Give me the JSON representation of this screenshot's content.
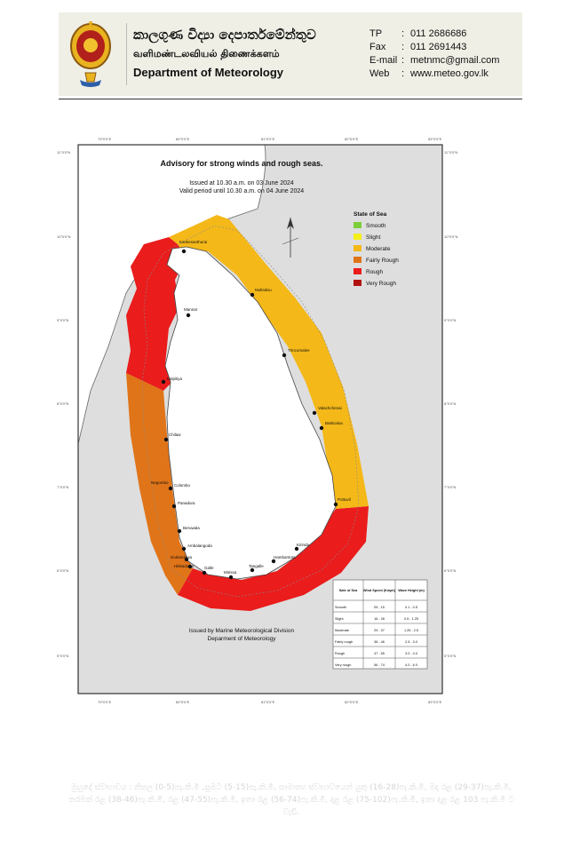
{
  "header": {
    "name_sinhala": "කාලගුණ විද්‍යා දෙපාර්තමේන්තුව",
    "name_tamil": "வளிமண்டலவியல் திணைக்களம்",
    "name_english": "Department of Meteorology",
    "contacts": [
      {
        "key": "TP",
        "sep": ":",
        "value": "011 2686686"
      },
      {
        "key": "Fax",
        "sep": ":",
        "value": "011 2691443"
      },
      {
        "key": "E-mail",
        "sep": ":",
        "value": "metnmc@gmail.com"
      },
      {
        "key": "Web",
        "sep": ":",
        "value": "www.meteo.gov.lk"
      }
    ]
  },
  "map": {
    "title": "Advisory for strong winds and rough seas.",
    "issued_line": "Issued at 10.30 a.m. on 03 June 2024",
    "valid_line": "Valid period until 10.30 a.m. on 04 June 2024",
    "lon_ticks": [
      "79°0'0\"E",
      "80°0'0\"E",
      "81°0'0\"E",
      "82°0'0\"E",
      "83°0'0\"E"
    ],
    "lat_ticks": [
      "11°0'0\"N",
      "10°0'0\"N",
      "9°0'0\"N",
      "8°0'0\"N",
      "7°0'0\"N",
      "6°0'0\"N",
      "5°0'0\"N"
    ],
    "legend": {
      "title": "State of Sea",
      "items": [
        {
          "label": "Smooth",
          "color": "#7ccf3a"
        },
        {
          "label": "Slight",
          "color": "#f4ef18"
        },
        {
          "label": "Moderate",
          "color": "#f4b818"
        },
        {
          "label": "Fairly Rough",
          "color": "#e07418"
        },
        {
          "label": "Rough",
          "color": "#ea1c1c"
        },
        {
          "label": "Very Rough",
          "color": "#b2120f"
        }
      ]
    },
    "zones": {
      "moderate_color": "#f4b818",
      "fairly_rough_color": "#e07418",
      "rough_color": "#ea1c1c",
      "land_color": "#ffffff",
      "sea_color": "#dedede"
    },
    "places": [
      "Kankesanthurai",
      "Mullaitivu",
      "Mannar",
      "Trincomalee",
      "Kalpitiya",
      "Valachchenai",
      "Batticaloa",
      "Chilaw",
      "Colombo",
      "Negombo",
      "Panadura",
      "Pottuvil",
      "Beruwala",
      "Ambalangoda",
      "Dodanduwa",
      "Hikkaduwa",
      "Galle",
      "Mirissa",
      "Tangalle",
      "Hambantota",
      "Kirinda"
    ],
    "issued_by_1": "Issued by Marine Meteorological Division",
    "issued_by_2": "Deparment of Meteorology",
    "table": {
      "headers": [
        "Sate of Sea",
        "Wind Speed (Kmph)",
        "Wave Height (m)"
      ],
      "rows": [
        [
          "Smooth",
          "05 - 15",
          "0.1 - 0.5"
        ],
        [
          "Slight",
          "16 - 28",
          "0.5 - 1.25"
        ],
        [
          "Moderate",
          "29 - 37",
          "1.25 - 2.5"
        ],
        [
          "Fairly rough",
          "38 - 46",
          "2.5 - 3.0"
        ],
        [
          "Rough",
          "47 - 55",
          "3.0 - 4.0"
        ],
        [
          "Very rough",
          "56 - 74",
          "4.0 - 6.0"
        ]
      ]
    }
  },
  "footer": {
    "text": "මුහුදේ ස්වභාවය : නිසල (0-5)පැ.කි.මී ,සුමට (5-15)පැ.කි.මී, සාමාන්‍ය ස්වභාවයෙන් යුතු (16-28)පැ.කි.මී, මද රළ (29-37)පැ.කි.මී, තරමක් රළ (38-46)පැ.කි.මී, රළ (47-55)පැ.කි.මී, ඉතා රළ (56-74)පැ.කි.මී, දළ රළ (75-102)පැ.කි.මී, ඉතා දළ රළ 103 පැ.කි.මී ට වැඩි."
  }
}
